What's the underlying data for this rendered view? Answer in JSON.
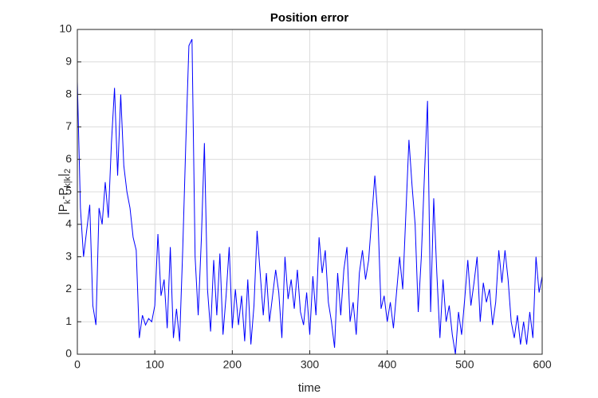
{
  "chart_data": {
    "type": "line",
    "title": "Position error",
    "xlabel": "time",
    "ylabel_parts": [
      "|P",
      "k",
      "-P",
      "k|k",
      "|",
      "2"
    ],
    "x": [
      0,
      4,
      8,
      12,
      16,
      20,
      24,
      28,
      32,
      36,
      40,
      44,
      48,
      52,
      56,
      60,
      64,
      68,
      72,
      76,
      80,
      84,
      88,
      92,
      96,
      100,
      104,
      108,
      112,
      116,
      120,
      124,
      128,
      132,
      136,
      140,
      144,
      148,
      152,
      156,
      160,
      164,
      168,
      172,
      176,
      180,
      184,
      188,
      192,
      196,
      200,
      204,
      208,
      212,
      216,
      220,
      224,
      228,
      232,
      236,
      240,
      244,
      248,
      252,
      256,
      260,
      264,
      268,
      272,
      276,
      280,
      284,
      288,
      292,
      296,
      300,
      304,
      308,
      312,
      316,
      320,
      324,
      328,
      332,
      336,
      340,
      344,
      348,
      352,
      356,
      360,
      364,
      368,
      372,
      376,
      380,
      384,
      388,
      392,
      396,
      400,
      404,
      408,
      412,
      416,
      420,
      424,
      428,
      432,
      436,
      440,
      444,
      448,
      452,
      456,
      460,
      464,
      468,
      472,
      476,
      480,
      484,
      488,
      492,
      496,
      500,
      504,
      508,
      512,
      516,
      520,
      524,
      528,
      532,
      536,
      540,
      544,
      548,
      552,
      556,
      560,
      564,
      568,
      572,
      576,
      580,
      584,
      588,
      592,
      596,
      600
    ],
    "series": [
      {
        "color": "#0000ff",
        "values": [
          8.4,
          4.5,
          3.0,
          3.8,
          4.6,
          1.5,
          0.9,
          4.5,
          4.0,
          5.3,
          4.2,
          6.5,
          8.2,
          5.5,
          8.0,
          5.8,
          5.0,
          4.5,
          3.6,
          3.2,
          0.5,
          1.2,
          0.9,
          1.1,
          1.0,
          1.5,
          3.7,
          1.8,
          2.3,
          0.8,
          3.3,
          0.5,
          1.4,
          0.4,
          3.2,
          6.5,
          9.5,
          9.7,
          3.0,
          1.2,
          3.5,
          6.5,
          2.0,
          0.7,
          2.9,
          1.2,
          3.1,
          0.6,
          1.8,
          3.3,
          0.8,
          2.0,
          0.9,
          1.8,
          0.4,
          2.3,
          0.3,
          1.5,
          3.8,
          2.5,
          1.2,
          2.5,
          1.0,
          1.8,
          2.6,
          1.9,
          0.5,
          3.0,
          1.7,
          2.3,
          1.4,
          2.6,
          1.3,
          0.9,
          1.9,
          0.6,
          2.4,
          1.2,
          3.6,
          2.5,
          3.2,
          1.6,
          1.0,
          0.2,
          2.5,
          1.2,
          2.6,
          3.3,
          1.0,
          1.6,
          0.6,
          2.5,
          3.2,
          2.3,
          2.9,
          4.2,
          5.5,
          4.2,
          1.4,
          1.8,
          1.0,
          1.6,
          0.8,
          1.9,
          3.0,
          2.0,
          4.3,
          6.6,
          5.2,
          4.0,
          1.3,
          3.0,
          5.5,
          7.8,
          1.3,
          4.8,
          2.5,
          0.5,
          2.3,
          1.0,
          1.5,
          0.6,
          0.0,
          1.3,
          0.6,
          1.7,
          2.9,
          1.5,
          2.2,
          3.0,
          1.0,
          2.2,
          1.6,
          2.0,
          0.9,
          1.6,
          3.2,
          2.2,
          3.2,
          2.3,
          1.0,
          0.5,
          1.2,
          0.3,
          1.0,
          0.3,
          1.3,
          0.5,
          3.0,
          1.9,
          2.4
        ]
      }
    ],
    "xlim": [
      0,
      600
    ],
    "xticks": [
      0,
      100,
      200,
      300,
      400,
      500,
      600
    ],
    "ylim": [
      0,
      10
    ],
    "yticks": [
      0,
      1,
      2,
      3,
      4,
      5,
      6,
      7,
      8,
      9,
      10
    ],
    "grid": true
  }
}
